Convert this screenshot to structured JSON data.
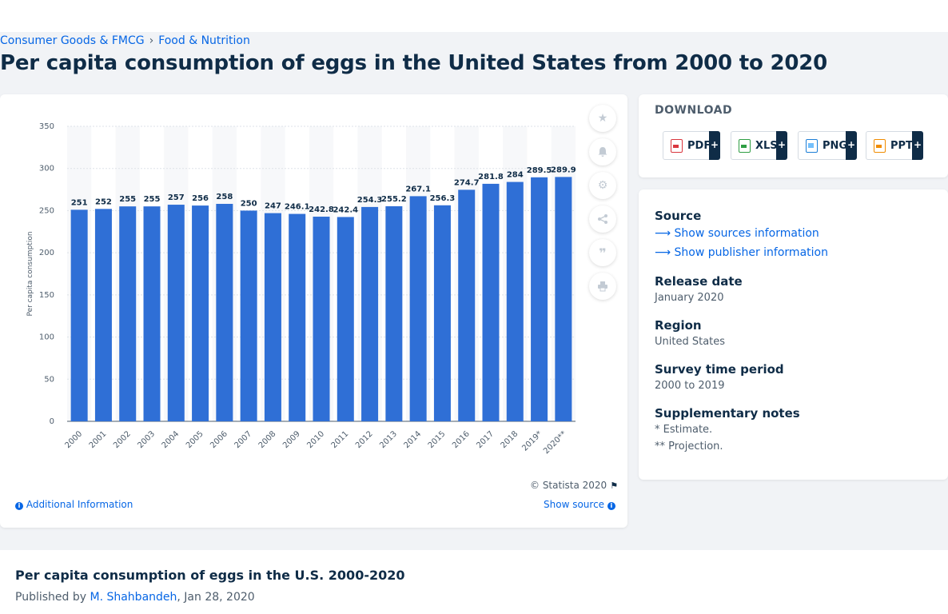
{
  "breadcrumb": {
    "item1": "Consumer Goods & FMCG",
    "separator": "›",
    "item2": "Food & Nutrition"
  },
  "page_title": "Per capita consumption of eggs in the United States from 2000 to 2020",
  "chart_card": {
    "copyright": "© Statista 2020",
    "additional_info": "Additional Information",
    "show_source": "Show source",
    "tools": [
      "star-icon",
      "bell-icon",
      "gear-icon",
      "share-icon",
      "quote-icon",
      "print-icon"
    ]
  },
  "download": {
    "title": "DOWNLOAD",
    "buttons": [
      {
        "label": "PDF",
        "icon": "pdf-file-icon",
        "color": "#d9363e"
      },
      {
        "label": "XLS",
        "icon": "xls-file-icon",
        "color": "#2f9e44"
      },
      {
        "label": "PNG",
        "icon": "png-file-icon",
        "color": "#1c7ed6"
      },
      {
        "label": "PPT",
        "icon": "ppt-file-icon",
        "color": "#f08c00"
      }
    ],
    "plus": "+"
  },
  "meta": {
    "source_heading": "Source",
    "show_sources": "Show sources information",
    "show_publisher": "Show publisher information",
    "release_heading": "Release date",
    "release_value": "January 2020",
    "region_heading": "Region",
    "region_value": "United States",
    "survey_heading": "Survey time period",
    "survey_value": "2000 to 2019",
    "notes_heading": "Supplementary notes",
    "note1": "* Estimate.",
    "note2": "** Projection."
  },
  "bottom": {
    "title": "Per capita consumption of eggs in the U.S. 2000-2020",
    "published_prefix": "Published by",
    "author": "M. Shahbandeh",
    "date": ", Jan 28, 2020"
  },
  "chart_data": {
    "type": "bar",
    "categories": [
      "2000",
      "2001",
      "2002",
      "2003",
      "2004",
      "2005",
      "2006",
      "2007",
      "2008",
      "2009",
      "2010",
      "2011",
      "2012",
      "2013",
      "2014",
      "2015",
      "2016",
      "2017",
      "2018",
      "2019*",
      "2020**"
    ],
    "values": [
      251,
      252,
      255,
      255,
      257,
      256,
      258,
      250,
      247,
      246.1,
      242.8,
      242.4,
      254.3,
      255.2,
      267.1,
      256.3,
      274.7,
      281.8,
      284,
      289.5,
      289.9
    ],
    "data_labels": [
      "251",
      "252",
      "255",
      "255",
      "257",
      "256",
      "258",
      "250",
      "247",
      "246.1",
      "242.8",
      "242.4",
      "254.3",
      "255.2",
      "267.1",
      "256.3",
      "274.7",
      "281.8",
      "284",
      "289.5",
      "289.9"
    ],
    "ylabel": "Per capita consumption",
    "ylim": [
      0,
      350
    ],
    "yticks": [
      0,
      50,
      100,
      150,
      200,
      250,
      300,
      350
    ],
    "grid": true,
    "bar_color": "#2f6fd6"
  }
}
